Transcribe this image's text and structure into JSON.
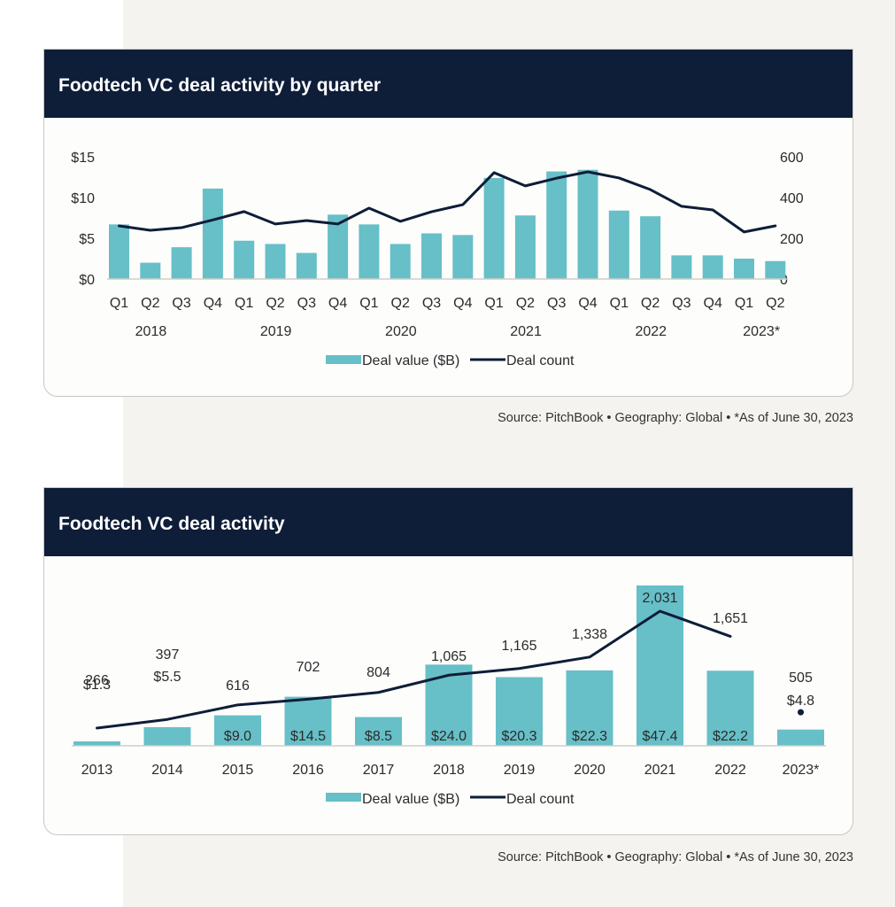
{
  "colors": {
    "bar": "#67bfc7",
    "line": "#0e1d38",
    "header_bg": "#0e1d38",
    "axis_text": "#2b2b2b",
    "baseline": "#d0cec9"
  },
  "top_card": {
    "title": "Foodtech VC deal activity by quarter",
    "source": "Source: PitchBook  •  Geography: Global  •  *As of June 30, 2023"
  },
  "bottom_card": {
    "title": "Foodtech VC deal activity",
    "source": "Source: PitchBook  •  Geography: Global  •  *As of June 30, 2023"
  },
  "chart_data": [
    {
      "type": "bar",
      "title": "Foodtech VC deal activity by quarter",
      "categories": [
        "Q1",
        "Q2",
        "Q3",
        "Q4",
        "Q1",
        "Q2",
        "Q3",
        "Q4",
        "Q1",
        "Q2",
        "Q3",
        "Q4",
        "Q1",
        "Q2",
        "Q3",
        "Q4",
        "Q1",
        "Q2",
        "Q3",
        "Q4",
        "Q1",
        "Q2"
      ],
      "year_groups": [
        {
          "label": "2018",
          "start": 0,
          "end": 3
        },
        {
          "label": "2019",
          "start": 4,
          "end": 7
        },
        {
          "label": "2020",
          "start": 8,
          "end": 11
        },
        {
          "label": "2021",
          "start": 12,
          "end": 15
        },
        {
          "label": "2022",
          "start": 16,
          "end": 19
        },
        {
          "label": "2023*",
          "start": 20,
          "end": 21
        }
      ],
      "series": [
        {
          "name": "Deal value ($B)",
          "type": "bar",
          "axis": "left",
          "values": [
            6.7,
            2.0,
            3.9,
            11.1,
            4.7,
            4.3,
            3.2,
            7.9,
            6.7,
            4.3,
            5.6,
            5.4,
            12.4,
            7.8,
            13.2,
            13.4,
            8.4,
            7.7,
            2.9,
            2.9,
            2.5,
            2.2
          ]
        },
        {
          "name": "Deal count",
          "type": "line",
          "axis": "right",
          "values": [
            261,
            239,
            252,
            290,
            331,
            270,
            287,
            270,
            348,
            283,
            330,
            365,
            522,
            457,
            495,
            526,
            496,
            439,
            357,
            339,
            231,
            261
          ]
        }
      ],
      "y_left": {
        "ticks": [
          "$0",
          "$5",
          "$10",
          "$15"
        ],
        "range": [
          0,
          15
        ]
      },
      "y_right": {
        "ticks": [
          "0",
          "200",
          "400",
          "600"
        ],
        "range": [
          0,
          600
        ]
      },
      "legend": [
        "Deal value ($B)",
        "Deal count"
      ],
      "legend_position": "bottom-center",
      "grid": false
    },
    {
      "type": "bar",
      "title": "Foodtech VC deal activity",
      "categories": [
        "2013",
        "2014",
        "2015",
        "2016",
        "2017",
        "2018",
        "2019",
        "2020",
        "2021",
        "2022",
        "2023*"
      ],
      "series": [
        {
          "name": "Deal value ($B)",
          "type": "bar",
          "values": [
            1.3,
            5.5,
            9.0,
            14.5,
            8.5,
            24.0,
            20.3,
            22.3,
            47.4,
            22.2,
            4.8
          ],
          "labels": [
            "$1.3",
            "$5.5",
            "$9.0",
            "$14.5",
            "$8.5",
            "$24.0",
            "$20.3",
            "$22.3",
            "$47.4",
            "$22.2",
            "$4.8"
          ]
        },
        {
          "name": "Deal count",
          "type": "line",
          "values": [
            266,
            397,
            616,
            702,
            804,
            1065,
            1165,
            1338,
            2031,
            1651,
            505
          ],
          "labels": [
            "266",
            "397",
            "616",
            "702",
            "804",
            "1,065",
            "1,165",
            "1,338",
            "2,031",
            "1,651",
            "505"
          ]
        }
      ],
      "legend": [
        "Deal value ($B)",
        "Deal count"
      ],
      "legend_position": "bottom-center",
      "grid": false
    }
  ]
}
